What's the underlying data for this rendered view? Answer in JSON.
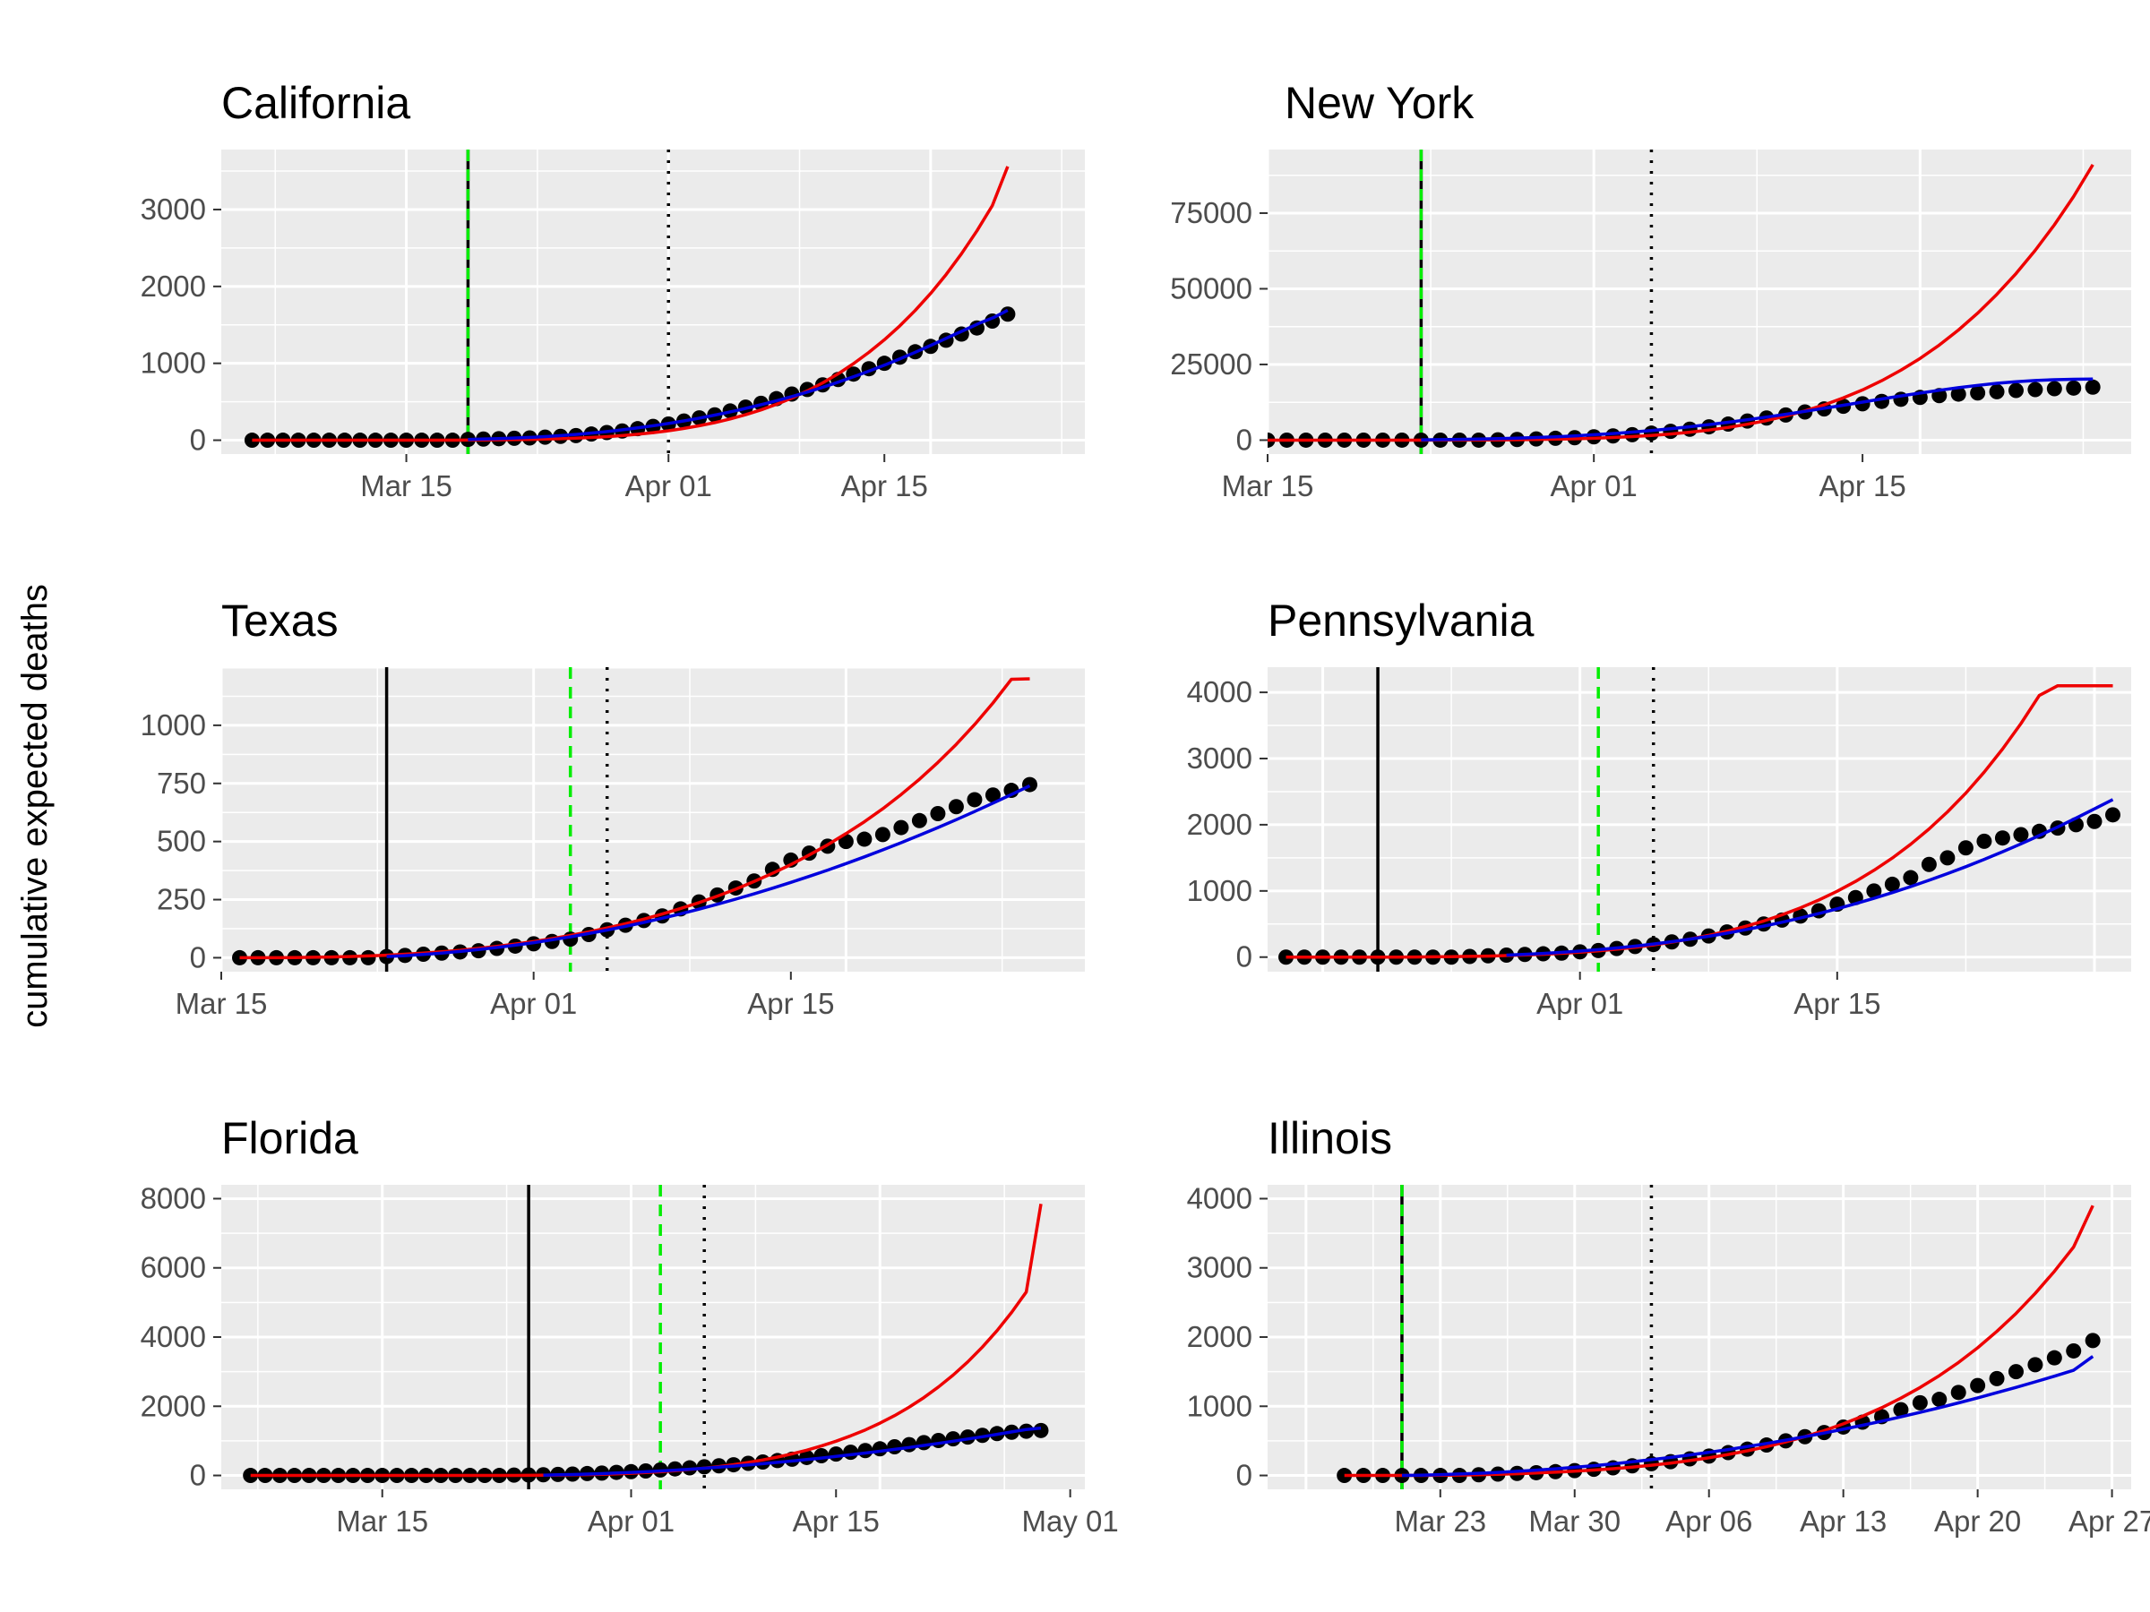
{
  "figure": {
    "ylabel": "cumulative expected deaths",
    "colors": {
      "panel_bg": "#ebebeb",
      "grid": "#ffffff",
      "points": "#000000",
      "model_red": "#ee0000",
      "model_blue": "#0000dd",
      "green_dashed": "#00ee00",
      "solid_vline": "#000000",
      "dotted_vline": "#000000",
      "tick_text": "#4d4d4d"
    }
  },
  "chart_data": [
    {
      "type": "line",
      "title": "California",
      "x_ticks": [
        "Mar 15",
        "Apr 01",
        "Apr 15"
      ],
      "y_ticks": [
        "0",
        "1000",
        "2000",
        "3000"
      ],
      "xlim": [
        "2020-03-03",
        "2020-04-28"
      ],
      "ylim": [
        -180,
        3780
      ],
      "vlines": {
        "solid": "2020-03-19",
        "dashed_green": "2020-03-19",
        "dotted": "2020-04-01"
      },
      "series": [
        {
          "kind": "points",
          "x_start": "2020-03-05",
          "x_end": "2020-04-23",
          "y": [
            0,
            0,
            0,
            0,
            0,
            0,
            0,
            0,
            0,
            0,
            0,
            0,
            0,
            0,
            10,
            15,
            20,
            25,
            30,
            40,
            50,
            60,
            80,
            100,
            120,
            150,
            180,
            210,
            250,
            290,
            330,
            380,
            430,
            480,
            540,
            600,
            660,
            720,
            790,
            860,
            930,
            1000,
            1080,
            1150,
            1220,
            1300,
            1380,
            1460,
            1550,
            1640
          ]
        },
        {
          "kind": "line",
          "color": "red",
          "x_start": "2020-03-05",
          "x_end": "2020-04-23",
          "y": [
            0,
            0,
            0,
            0,
            0,
            0,
            0,
            0,
            0,
            0,
            0,
            0,
            0,
            1,
            2,
            3,
            5,
            7,
            10,
            14,
            19,
            26,
            35,
            46,
            60,
            77,
            98,
            123,
            153,
            188,
            229,
            276,
            331,
            394,
            466,
            548,
            641,
            746,
            864,
            996,
            1143,
            1306,
            1487,
            1687,
            1909,
            2154,
            2425,
            2723,
            3051,
            3560
          ]
        },
        {
          "kind": "line",
          "color": "blue",
          "x_start": "2020-03-19",
          "x_end": "2020-04-23",
          "y": [
            10,
            14,
            19,
            25,
            32,
            40,
            50,
            62,
            75,
            90,
            107,
            126,
            147,
            170,
            195,
            222,
            251,
            282,
            316,
            352,
            390,
            431,
            474,
            520,
            568,
            619,
            673,
            730,
            790,
            852,
            918,
            986,
            1058,
            1133,
            1211,
            1290,
            1370,
            1450,
            1530,
            1600,
            1690
          ]
        }
      ]
    },
    {
      "type": "line",
      "title": "New York",
      "x_ticks": [
        "Mar 15",
        "Apr 01",
        "Apr 15"
      ],
      "y_ticks": [
        "0",
        "25000",
        "50000",
        "75000"
      ],
      "xlim": [
        "2020-03-15",
        "2020-04-29"
      ],
      "ylim": [
        -4600,
        96000
      ],
      "vlines": {
        "solid": "2020-03-23",
        "dashed_green": "2020-03-23",
        "dotted": "2020-04-04"
      },
      "series": [
        {
          "kind": "points",
          "x_start": "2020-03-14",
          "x_end": "2020-04-27",
          "y": [
            0,
            0,
            0,
            0,
            0,
            0,
            0,
            0,
            0,
            0,
            0,
            0,
            0,
            100,
            200,
            400,
            600,
            800,
            1100,
            1400,
            1800,
            2300,
            2900,
            3600,
            4400,
            5300,
            6300,
            7300,
            8300,
            9300,
            10300,
            11200,
            12000,
            12800,
            13500,
            14100,
            14700,
            15200,
            15600,
            16000,
            16400,
            16700,
            17000,
            17200,
            17500
          ]
        },
        {
          "kind": "line",
          "color": "red",
          "x_start": "2020-03-14",
          "x_end": "2020-04-27",
          "y": [
            0,
            0,
            0,
            0,
            0,
            0,
            0,
            0,
            0,
            0,
            10,
            20,
            40,
            80,
            130,
            200,
            300,
            440,
            620,
            860,
            1160,
            1540,
            2020,
            2610,
            3330,
            4200,
            5240,
            6480,
            7940,
            9650,
            11640,
            13940,
            16590,
            19620,
            23080,
            27000,
            31420,
            36390,
            41950,
            48150,
            55050,
            62700,
            71150,
            80480,
            91000
          ]
        },
        {
          "kind": "line",
          "color": "blue",
          "x_start": "2020-03-23",
          "x_end": "2020-04-27",
          "y": [
            100,
            160,
            240,
            350,
            490,
            660,
            870,
            1120,
            1420,
            1780,
            2190,
            2660,
            3190,
            3780,
            4430,
            5140,
            5910,
            6740,
            7620,
            8550,
            9520,
            10520,
            11540,
            12570,
            13590,
            14590,
            15560,
            16480,
            17330,
            18100,
            18760,
            19300,
            19700,
            19950,
            20100,
            20200
          ]
        }
      ]
    },
    {
      "type": "line",
      "title": "Texas",
      "x_ticks": [
        "Mar 15",
        "Apr 01",
        "Apr 15"
      ],
      "y_ticks": [
        "0",
        "250",
        "500",
        "750",
        "1000"
      ],
      "xlim": [
        "2020-03-15",
        "2020-05-01"
      ],
      "ylim": [
        -60,
        1250
      ],
      "vlines": {
        "solid": "2020-03-24",
        "dashed_green": "2020-04-03",
        "dotted": "2020-04-05"
      },
      "series": [
        {
          "kind": "points",
          "x_start": "2020-03-16",
          "x_end": "2020-04-28",
          "y": [
            0,
            0,
            0,
            0,
            0,
            0,
            0,
            0,
            5,
            10,
            15,
            20,
            25,
            30,
            40,
            50,
            60,
            70,
            80,
            100,
            120,
            140,
            160,
            180,
            210,
            240,
            270,
            300,
            330,
            380,
            420,
            450,
            480,
            500,
            510,
            530,
            560,
            590,
            620,
            650,
            680,
            700,
            720,
            745
          ]
        },
        {
          "kind": "line",
          "color": "red",
          "x_start": "2020-03-16",
          "x_end": "2020-04-28",
          "y": [
            0,
            0,
            0,
            1,
            2,
            3,
            5,
            8,
            11,
            15,
            20,
            26,
            32,
            40,
            49,
            59,
            70,
            82,
            96,
            111,
            128,
            146,
            166,
            188,
            212,
            237,
            265,
            295,
            328,
            363,
            401,
            442,
            486,
            534,
            585,
            641,
            702,
            768,
            840,
            918,
            1003,
            1096,
            1198,
            1200
          ]
        },
        {
          "kind": "line",
          "color": "blue",
          "x_start": "2020-03-24",
          "x_end": "2020-04-28",
          "y": [
            5,
            9,
            14,
            20,
            27,
            35,
            44,
            54,
            65,
            77,
            90,
            104,
            119,
            135,
            152,
            170,
            189,
            209,
            230,
            252,
            275,
            299,
            324,
            350,
            377,
            405,
            434,
            464,
            495,
            527,
            560,
            594,
            629,
            665,
            702,
            740
          ]
        }
      ]
    },
    {
      "type": "line",
      "title": "Pennsylvania",
      "x_ticks": [
        "Apr 01",
        "Apr 15"
      ],
      "y_ticks": [
        "0",
        "1000",
        "2000",
        "3000",
        "4000"
      ],
      "xlim": [
        "2020-03-15",
        "2020-05-01"
      ],
      "ylim": [
        -220,
        4380
      ],
      "vlines": {
        "solid": "2020-03-21",
        "dashed_green": "2020-04-02",
        "dotted": "2020-04-05"
      },
      "series": [
        {
          "kind": "points",
          "x_start": "2020-03-16",
          "x_end": "2020-04-30",
          "y": [
            0,
            0,
            0,
            0,
            0,
            0,
            0,
            0,
            0,
            0,
            10,
            20,
            30,
            40,
            50,
            60,
            80,
            100,
            130,
            160,
            190,
            230,
            270,
            320,
            380,
            440,
            500,
            560,
            620,
            700,
            800,
            900,
            1000,
            1100,
            1200,
            1400,
            1500,
            1650,
            1750,
            1800,
            1850,
            1900,
            1950,
            2000,
            2050,
            2150
          ]
        },
        {
          "kind": "line",
          "color": "red",
          "x_start": "2020-03-16",
          "x_end": "2020-04-30",
          "y": [
            0,
            0,
            0,
            0,
            0,
            0,
            1,
            2,
            4,
            7,
            11,
            16,
            23,
            32,
            43,
            57,
            74,
            95,
            120,
            150,
            185,
            226,
            274,
            329,
            392,
            464,
            546,
            639,
            744,
            862,
            995,
            1144,
            1311,
            1497,
            1705,
            1936,
            2193,
            2478,
            2794,
            3143,
            3528,
            3952,
            4100,
            4100,
            4100,
            4100
          ]
        },
        {
          "kind": "line",
          "color": "blue",
          "x_start": "2020-03-28",
          "x_end": "2020-04-30",
          "y": [
            30,
            42,
            56,
            72,
            91,
            113,
            138,
            166,
            198,
            233,
            272,
            315,
            362,
            413,
            468,
            527,
            590,
            658,
            730,
            807,
            888,
            974,
            1065,
            1161,
            1261,
            1366,
            1476,
            1591,
            1711,
            1836,
            1966,
            2100,
            2240,
            2380
          ]
        }
      ]
    },
    {
      "type": "line",
      "title": "Florida",
      "x_ticks": [
        "Mar 15",
        "Apr 01",
        "Apr 15",
        "May 01"
      ],
      "y_ticks": [
        "0",
        "2000",
        "4000",
        "6000",
        "8000"
      ],
      "xlim": [
        "2020-03-04",
        "2020-05-02"
      ],
      "ylim": [
        -400,
        8400
      ],
      "vlines": {
        "solid": "2020-03-25",
        "dashed_green": "2020-04-03",
        "dotted": "2020-04-06"
      },
      "series": [
        {
          "kind": "points",
          "x_start": "2020-03-06",
          "x_end": "2020-04-29",
          "y": [
            0,
            0,
            0,
            0,
            0,
            0,
            0,
            0,
            0,
            0,
            0,
            0,
            0,
            0,
            0,
            0,
            0,
            0,
            10,
            15,
            20,
            30,
            40,
            55,
            70,
            90,
            110,
            130,
            160,
            190,
            220,
            250,
            280,
            310,
            350,
            390,
            430,
            470,
            520,
            570,
            620,
            670,
            720,
            770,
            830,
            890,
            950,
            1010,
            1060,
            1110,
            1160,
            1210,
            1250,
            1280,
            1300
          ]
        },
        {
          "kind": "line",
          "color": "red",
          "x_start": "2020-03-06",
          "x_end": "2020-04-29",
          "y": [
            0,
            0,
            0,
            0,
            0,
            0,
            0,
            0,
            0,
            0,
            0,
            0,
            0,
            0,
            0,
            0,
            0,
            1,
            2,
            4,
            7,
            11,
            17,
            25,
            35,
            48,
            64,
            84,
            108,
            137,
            171,
            211,
            258,
            313,
            376,
            448,
            531,
            625,
            732,
            853,
            990,
            1144,
            1317,
            1512,
            1731,
            1976,
            2251,
            2558,
            2901,
            3284,
            3711,
            4186,
            4715,
            5302,
            7850
          ]
        },
        {
          "kind": "line",
          "color": "blue",
          "x_start": "2020-03-26",
          "x_end": "2020-04-29",
          "y": [
            10,
            18,
            28,
            40,
            54,
            70,
            88,
            108,
            130,
            154,
            180,
            208,
            238,
            270,
            304,
            340,
            378,
            418,
            460,
            504,
            550,
            598,
            648,
            700,
            754,
            810,
            868,
            928,
            990,
            1054,
            1120,
            1188,
            1258,
            1330,
            1370
          ]
        }
      ]
    },
    {
      "type": "line",
      "title": "Illinois",
      "x_ticks": [
        "Mar 23",
        "Mar 30",
        "Apr 06",
        "Apr 13",
        "Apr 20",
        "Apr 27"
      ],
      "y_ticks": [
        "0",
        "1000",
        "2000",
        "3000",
        "4000"
      ],
      "xlim": [
        "2020-03-14",
        "2020-04-28"
      ],
      "ylim": [
        -200,
        4200
      ],
      "vlines": {
        "solid": "2020-03-21",
        "dashed_green": "2020-03-21",
        "dotted": "2020-04-03"
      },
      "series": [
        {
          "kind": "points",
          "x_start": "2020-03-18",
          "x_end": "2020-04-26",
          "y": [
            0,
            0,
            0,
            0,
            0,
            0,
            0,
            10,
            20,
            30,
            40,
            55,
            70,
            90,
            110,
            140,
            170,
            200,
            240,
            280,
            330,
            380,
            440,
            500,
            560,
            620,
            700,
            770,
            850,
            950,
            1050,
            1100,
            1200,
            1300,
            1400,
            1500,
            1600,
            1700,
            1800,
            1950
          ]
        },
        {
          "kind": "line",
          "color": "red",
          "x_start": "2020-03-18",
          "x_end": "2020-04-26",
          "y": [
            0,
            0,
            0,
            0,
            1,
            3,
            6,
            11,
            17,
            25,
            35,
            47,
            61,
            78,
            98,
            121,
            148,
            179,
            215,
            256,
            303,
            356,
            416,
            484,
            561,
            648,
            746,
            856,
            979,
            1117,
            1271,
            1442,
            1633,
            1845,
            2081,
            2342,
            2631,
            2950,
            3301,
            3900
          ]
        },
        {
          "kind": "line",
          "color": "blue",
          "x_start": "2020-03-21",
          "x_end": "2020-04-26",
          "y": [
            0,
            5,
            12,
            21,
            32,
            45,
            60,
            77,
            96,
            118,
            142,
            168,
            197,
            228,
            261,
            297,
            335,
            375,
            418,
            463,
            511,
            561,
            613,
            668,
            725,
            785,
            847,
            912,
            979,
            1049,
            1121,
            1196,
            1273,
            1353,
            1435,
            1520,
            1720
          ]
        }
      ]
    }
  ]
}
